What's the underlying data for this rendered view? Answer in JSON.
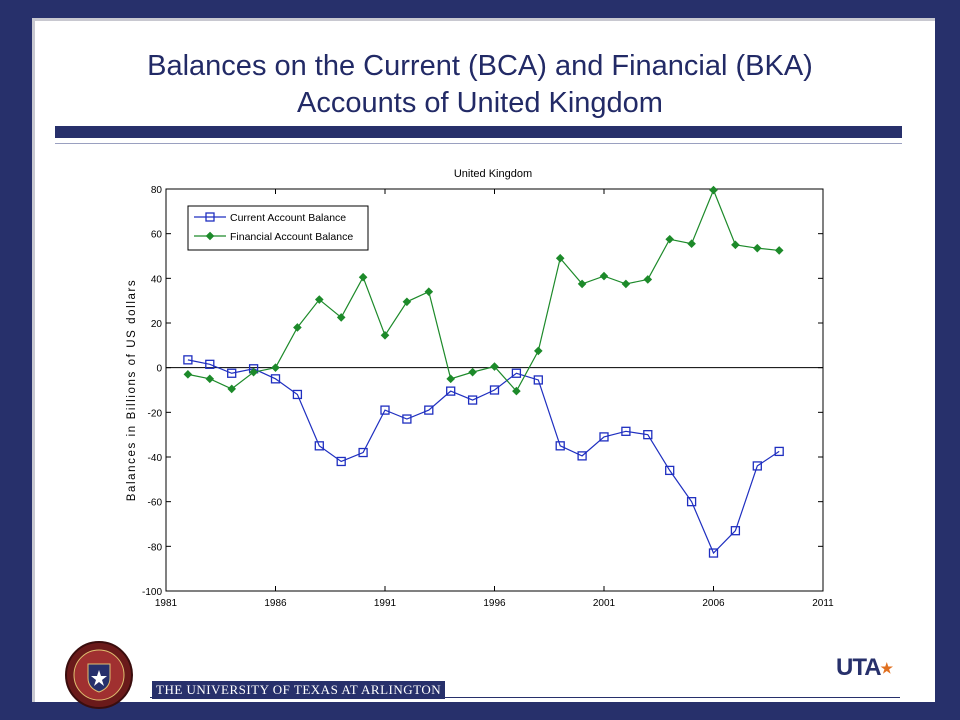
{
  "slide": {
    "title_line1": "Balances on the Current (BCA) and Financial (BKA)",
    "title_line2": "Accounts of United Kingdom",
    "footer": "THE UNIVERSITY OF TEXAS AT ARLINGTON",
    "logo": "UTA",
    "seal_text": "THE UNIVERSITY OF TEXAS AT ARLINGTON",
    "colors": {
      "frame": "#27306b",
      "logo_star": "#e07020"
    }
  },
  "chart_data": {
    "type": "line",
    "title": "United Kingdom",
    "xlabel": "",
    "ylabel": "Balances in Billions of US dollars",
    "xlim": [
      1981,
      2011
    ],
    "ylim": [
      -100,
      80
    ],
    "xticks": [
      1981,
      1986,
      1991,
      1996,
      2001,
      2006,
      2011
    ],
    "yticks": [
      80,
      60,
      40,
      20,
      0,
      -20,
      -40,
      -60,
      -80,
      -100
    ],
    "grid": false,
    "zero_line": true,
    "legend_position": "top-left",
    "series": [
      {
        "name": "Current Account Balance",
        "color": "#1f2fc0",
        "marker": "square",
        "x": [
          1982,
          1983,
          1984,
          1985,
          1986,
          1987,
          1988,
          1989,
          1990,
          1991,
          1992,
          1993,
          1994,
          1995,
          1996,
          1997,
          1998,
          1999,
          2000,
          2001,
          2002,
          2003,
          2004,
          2005,
          2006,
          2007,
          2008,
          2009
        ],
        "values": [
          3.5,
          1.5,
          -2.5,
          -0.5,
          -5,
          -12,
          -35,
          -42,
          -38,
          -19,
          -23,
          -19,
          -10.5,
          -14.5,
          -10,
          -2.5,
          -5.5,
          -35,
          -39.5,
          -31,
          -28.5,
          -30,
          -46,
          -60,
          -83,
          -73,
          -44,
          -37.5
        ]
      },
      {
        "name": "Financial Account Balance",
        "color": "#1d8a2a",
        "marker": "diamond",
        "x": [
          1982,
          1983,
          1984,
          1985,
          1986,
          1987,
          1988,
          1989,
          1990,
          1991,
          1992,
          1993,
          1994,
          1995,
          1996,
          1997,
          1998,
          1999,
          2000,
          2001,
          2002,
          2003,
          2004,
          2005,
          2006,
          2007,
          2008,
          2009
        ],
        "values": [
          -3,
          -5,
          -9.5,
          -2,
          0,
          18,
          30.5,
          22.5,
          40.5,
          14.5,
          29.5,
          34,
          -5,
          -2,
          0.5,
          -10.5,
          7.5,
          49,
          37.5,
          41,
          37.5,
          39.5,
          57.5,
          55.5,
          79.5,
          55,
          53.5,
          52.5
        ]
      }
    ]
  }
}
